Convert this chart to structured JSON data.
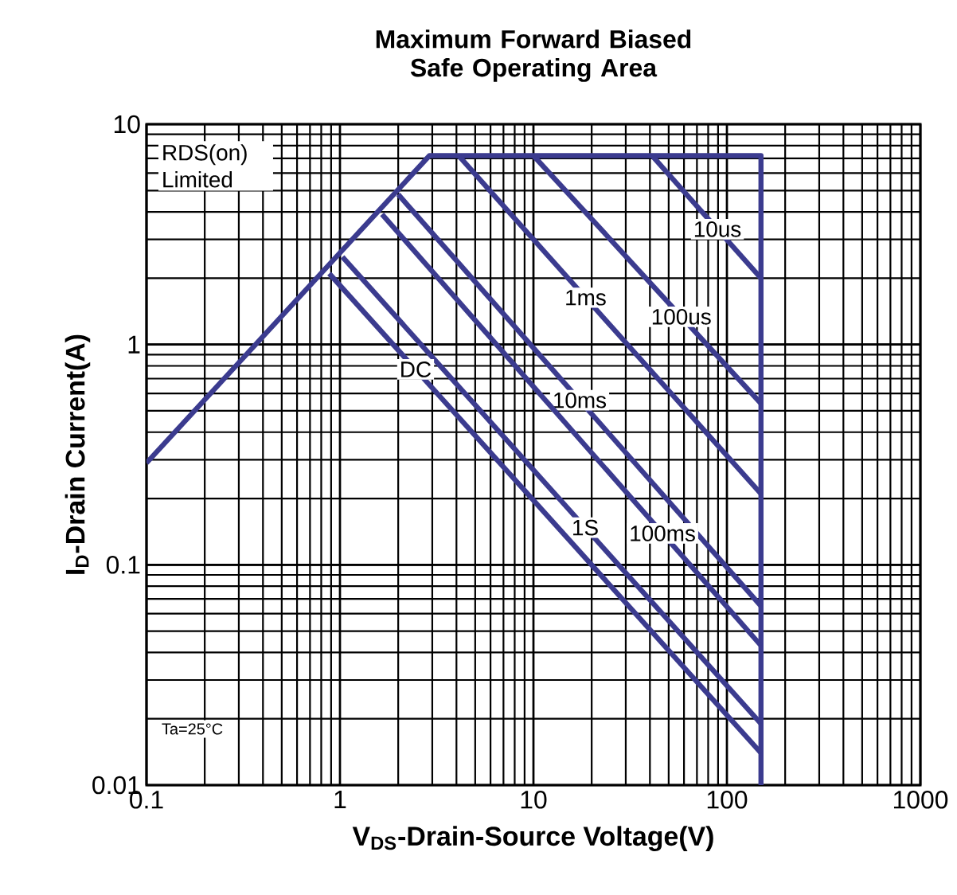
{
  "chart_data": {
    "type": "line",
    "title": "Maximum Forward Biased Safe Operating Area",
    "xlabel": "V$_{DS}$-Drain-Source Voltage(V)",
    "ylabel": "I$_{D}$-Drain Current(A)",
    "log": "xy",
    "xlim": [
      0.1,
      1000
    ],
    "ylim": [
      0.01,
      10
    ],
    "xticks": [
      0.1,
      1,
      10,
      100,
      1000
    ],
    "yticks": [
      0.01,
      0.1,
      1,
      10
    ],
    "grid": true,
    "marker": "none",
    "line_style": "solid",
    "annotations": [
      "RDS(on) Limited",
      "Ta=25°C"
    ],
    "series": [
      {
        "color": "#3b3b8f",
        "x": [
          0.1,
          2.9,
          150,
          150
        ],
        "values": [
          0.29,
          7.2,
          7.2,
          0.01
        ]
      },
      {
        "name": "10us",
        "color": "#3b3b8f",
        "x": [
          41,
          150
        ],
        "values": [
          7.2,
          2.0
        ]
      },
      {
        "name": "100us",
        "color": "#3b3b8f",
        "x": [
          10,
          150
        ],
        "values": [
          7.2,
          0.54
        ]
      },
      {
        "name": "1ms",
        "color": "#3b3b8f",
        "x": [
          4.1,
          150
        ],
        "values": [
          7.2,
          0.21
        ]
      },
      {
        "name": "10ms",
        "color": "#3b3b8f",
        "x": [
          2.0,
          150
        ],
        "values": [
          4.8,
          0.065
        ]
      },
      {
        "name": "100ms",
        "color": "#3b3b8f",
        "x": [
          1.65,
          150
        ],
        "values": [
          3.9,
          0.043
        ]
      },
      {
        "name": "1S",
        "color": "#3b3b8f",
        "x": [
          1.03,
          150
        ],
        "values": [
          2.5,
          0.019
        ]
      },
      {
        "name": "DC",
        "color": "#3b3b8f",
        "x": [
          0.88,
          150
        ],
        "values": [
          2.1,
          0.014
        ]
      }
    ]
  }
}
